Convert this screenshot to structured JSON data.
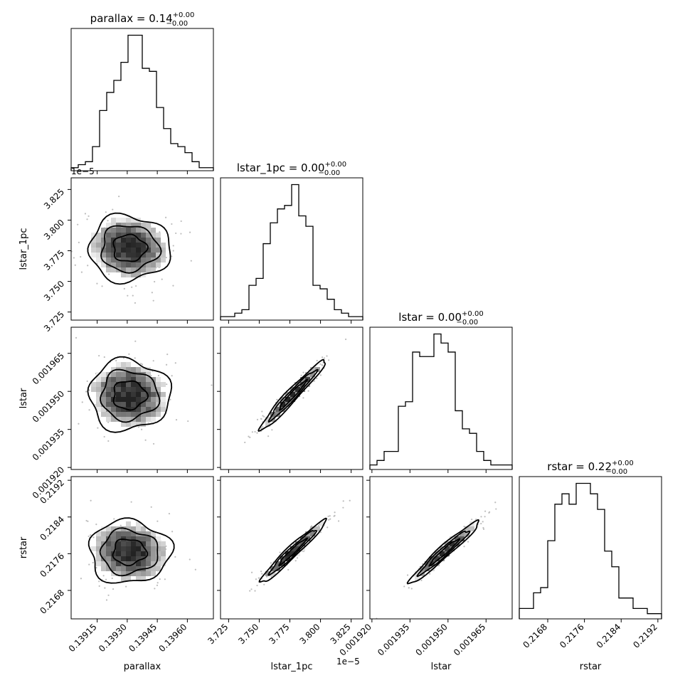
{
  "chart_data": {
    "type": "corner",
    "variables": [
      {
        "name": "parallax",
        "label": "parallax",
        "title_main": "parallax = 0.14",
        "title_sup": "+0.00",
        "title_sub": "−0.00",
        "range": [
          0.13902,
          0.13973
        ],
        "ticks": [
          0.13915,
          0.1393,
          0.13945,
          0.1396
        ],
        "tick_labels": [
          "0.13915",
          "0.13930",
          "0.13945",
          "0.13960"
        ],
        "hist": [
          1,
          2,
          3,
          8,
          20,
          26,
          30,
          36,
          45,
          45,
          34,
          33,
          21,
          14,
          9,
          8,
          6,
          3,
          1,
          1
        ]
      },
      {
        "name": "lstar_1pc",
        "label": "lstar_1pc",
        "title_main": "lstar_1pc = 0.00",
        "title_sup": "+0.00",
        "title_sub": "−0.00",
        "offset": "1e−5",
        "range": [
          3.7184,
          3.8345
        ],
        "ticks": [
          3.725,
          3.75,
          3.775,
          3.8,
          3.825
        ],
        "tick_labels": [
          "3.725",
          "3.750",
          "3.775",
          "3.800",
          "3.825"
        ],
        "hist": [
          1,
          1,
          2,
          3,
          10,
          12,
          22,
          28,
          32,
          33,
          39,
          30,
          27,
          10,
          9,
          6,
          3,
          2,
          1,
          1
        ]
      },
      {
        "name": "lstar",
        "label": "lstar",
        "title_main": "lstar = 0.00",
        "title_sup": "+0.00",
        "title_sub": "−0.00",
        "range": [
          0.0019192,
          0.0019753
        ],
        "ticks": [
          0.00192,
          0.001935,
          0.00195,
          0.001965
        ],
        "tick_labels": [
          "0.001920",
          "0.001935",
          "0.001950",
          "0.001965"
        ],
        "hist": [
          1,
          2,
          4,
          4,
          14,
          15,
          26,
          25,
          25,
          30,
          28,
          26,
          13,
          9,
          8,
          4,
          2,
          1,
          1,
          1
        ]
      },
      {
        "name": "rstar",
        "label": "rstar",
        "title_main": "rstar = 0.22",
        "title_sup": "+0.00",
        "title_sub": "−0.00",
        "range": [
          0.21618,
          0.21928
        ],
        "ticks": [
          0.2168,
          0.2176,
          0.2184,
          0.2192
        ],
        "tick_labels": [
          "0.2168",
          "0.2176",
          "0.2184",
          "0.2192"
        ],
        "hist": [
          2,
          2,
          5,
          6,
          15,
          22,
          24,
          22,
          26,
          26,
          24,
          21,
          13,
          10,
          4,
          4,
          2,
          2,
          1,
          1
        ]
      }
    ]
  }
}
